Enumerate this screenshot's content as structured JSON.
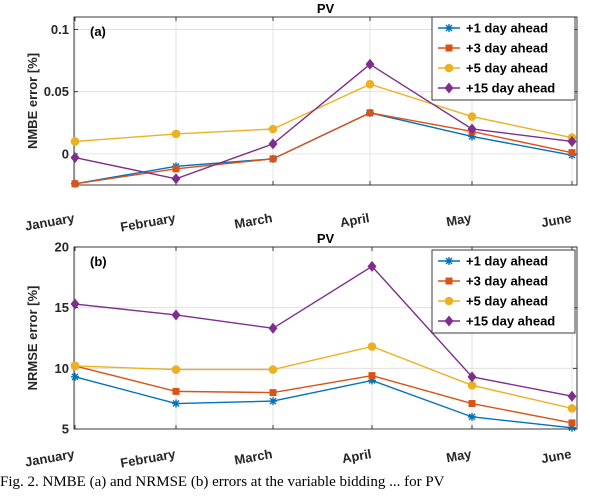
{
  "chart_data": [
    {
      "type": "line",
      "title": "PV",
      "panel_label": "(a)",
      "ylabel": "NMBE error [%]",
      "categories": [
        "January",
        "February",
        "March",
        "April",
        "May",
        "June"
      ],
      "ylim": [
        -0.025,
        0.11
      ],
      "yticks": [
        0,
        0.05,
        0.1
      ],
      "ytick_labels": [
        "0",
        "0.05",
        "0.1"
      ],
      "grid": true,
      "legend_position": "top-right",
      "series": [
        {
          "name": "+1 day ahead",
          "color": "#0072BD",
          "marker": "star",
          "values": [
            -0.024,
            -0.01,
            -0.004,
            0.033,
            0.014,
            -0.001
          ]
        },
        {
          "name": "+3 day ahead",
          "color": "#D95319",
          "marker": "square",
          "values": [
            -0.024,
            -0.012,
            -0.004,
            0.033,
            0.018,
            0.001
          ]
        },
        {
          "name": "+5 day ahead",
          "color": "#EDB120",
          "marker": "circle",
          "values": [
            0.01,
            0.016,
            0.02,
            0.056,
            0.03,
            0.013
          ]
        },
        {
          "name": "+15 day ahead",
          "color": "#7E2F8E",
          "marker": "diamond",
          "values": [
            -0.003,
            -0.02,
            0.008,
            0.072,
            0.02,
            0.01
          ]
        }
      ]
    },
    {
      "type": "line",
      "title": "PV",
      "panel_label": "(b)",
      "ylabel": "NRMSE error [%]",
      "categories": [
        "January",
        "February",
        "March",
        "April",
        "May",
        "June"
      ],
      "ylim": [
        5,
        20
      ],
      "yticks": [
        5,
        10,
        15,
        20
      ],
      "ytick_labels": [
        "5",
        "10",
        "15",
        "20"
      ],
      "grid": true,
      "legend_position": "top-right",
      "series": [
        {
          "name": "+1 day ahead",
          "color": "#0072BD",
          "marker": "star",
          "values": [
            9.3,
            7.1,
            7.3,
            9.0,
            6.0,
            5.1
          ]
        },
        {
          "name": "+3 day ahead",
          "color": "#D95319",
          "marker": "square",
          "values": [
            10.2,
            8.1,
            8.0,
            9.4,
            7.1,
            5.5
          ]
        },
        {
          "name": "+5 day ahead",
          "color": "#EDB120",
          "marker": "circle",
          "values": [
            10.2,
            9.9,
            9.9,
            11.8,
            8.6,
            6.7
          ]
        },
        {
          "name": "+15 day ahead",
          "color": "#7E2F8E",
          "marker": "diamond",
          "values": [
            15.3,
            14.4,
            13.3,
            18.4,
            9.3,
            7.7
          ]
        }
      ]
    }
  ],
  "caption": "Fig. 2. NMBE (a) and NRMSE (b) errors at the variable bidding ... for PV"
}
